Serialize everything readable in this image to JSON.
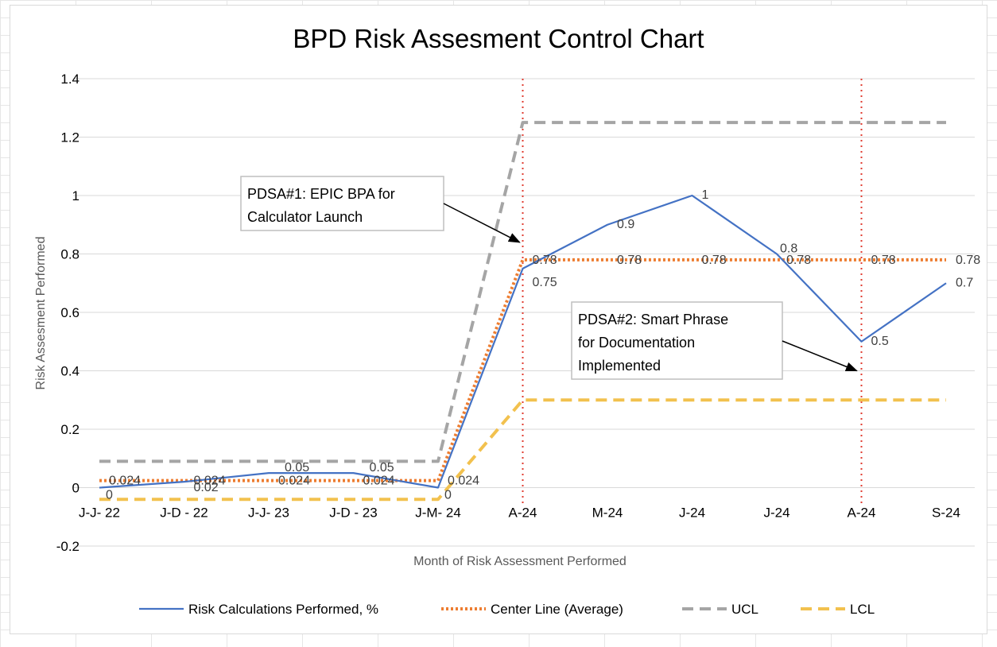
{
  "chart_data": {
    "type": "line",
    "title": "BPD Risk Assesment Control Chart",
    "xlabel": "Month of Risk Assessment Performed",
    "ylabel": "Risk Assesment Performed",
    "ylim": [
      -0.2,
      1.4
    ],
    "yticks": [
      "-0.2",
      "0",
      "0.2",
      "0.4",
      "0.6",
      "0.8",
      "1",
      "1.2",
      "1.4"
    ],
    "categories": [
      "J-J- 22",
      "J-D - 22",
      "J-J- 23",
      "J-D - 23",
      "J-M- 24",
      "A-24",
      "M-24",
      "J-24",
      "J-24",
      "A-24",
      "S-24"
    ],
    "grid": true,
    "legend_position": "bottom",
    "series": [
      {
        "name": "Risk Calculations Performed, %",
        "color": "#4472C4",
        "style": "solid",
        "values": [
          0,
          0.02,
          0.05,
          0.05,
          0,
          0.75,
          0.9,
          1,
          0.8,
          0.5,
          0.7
        ],
        "labels": [
          "0",
          "0.02",
          "0.05",
          "0.05",
          "0",
          "0.75",
          "0.9",
          "1",
          "0.8",
          "0.5",
          "0.7"
        ]
      },
      {
        "name": "Center Line (Average)",
        "color": "#ED7D31",
        "style": "dotted",
        "values": [
          0.024,
          0.024,
          0.024,
          0.024,
          0.024,
          0.78,
          0.78,
          0.78,
          0.78,
          0.78,
          0.78
        ],
        "labels": [
          "0.024",
          "0.024",
          "0.024",
          "0.024",
          "0.024",
          "0.78",
          "0.78",
          "0.78",
          "0.78",
          "0.78",
          "0.78"
        ]
      },
      {
        "name": "UCL",
        "color": "#A5A5A5",
        "style": "dashed",
        "values": [
          0.09,
          0.09,
          0.09,
          0.09,
          0.09,
          1.25,
          1.25,
          1.25,
          1.25,
          1.25,
          1.25
        ]
      },
      {
        "name": "LCL",
        "color": "#F2C14E",
        "style": "dashed",
        "values": [
          -0.04,
          -0.04,
          -0.04,
          -0.04,
          -0.04,
          0.3,
          0.3,
          0.3,
          0.3,
          0.3,
          0.3
        ]
      }
    ],
    "annotations": [
      {
        "text": [
          "PDSA#1: EPIC BPA for",
          "Calculator Launch"
        ],
        "category_index": 5
      },
      {
        "text": [
          "PDSA#2: Smart Phrase",
          "for Documentation",
          "Implemented"
        ],
        "category_index": 9
      }
    ],
    "vlines": [
      5,
      9
    ],
    "vline_color": "#E03C31"
  }
}
